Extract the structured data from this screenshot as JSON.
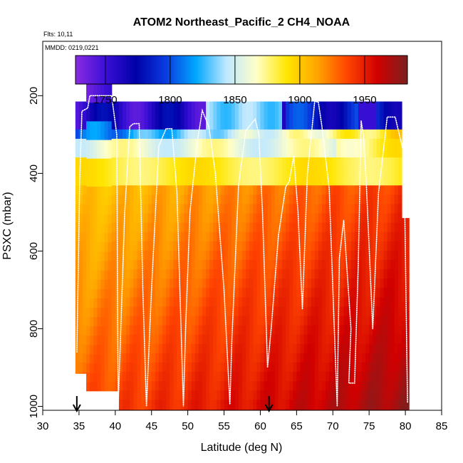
{
  "chart_data": {
    "type": "heatmap",
    "title": "ATOM2 Northeast_Pacific_2 CH4_NOAA",
    "flights_label": "Flts: 10,11",
    "dates_label": "MMDD: 0219,0221",
    "xlabel": "Latitude (deg N)",
    "ylabel": "PSXC (mbar)",
    "xlim": [
      30,
      85
    ],
    "ylim": [
      1010,
      60
    ],
    "x_ticks": [
      "30",
      "35",
      "40",
      "45",
      "50",
      "55",
      "60",
      "65",
      "70",
      "75",
      "80",
      "85"
    ],
    "y_ticks": [
      "200",
      "400",
      "600",
      "800",
      "1000"
    ],
    "colorbar": {
      "range": [
        1727,
        1983
      ],
      "ticks": [
        "1750",
        "1800",
        "1850",
        "1900",
        "1950"
      ],
      "colors": [
        "#8a2be2",
        "#3b0fd6",
        "#0000a8",
        "#0a3ce0",
        "#00a8ff",
        "#bfe8ff",
        "#ffffc8",
        "#ffe600",
        "#ffa500",
        "#ff4500",
        "#d10000",
        "#7a2020"
      ]
    },
    "markers_lat": [
      34.7,
      61.2
    ],
    "grid": false
  }
}
